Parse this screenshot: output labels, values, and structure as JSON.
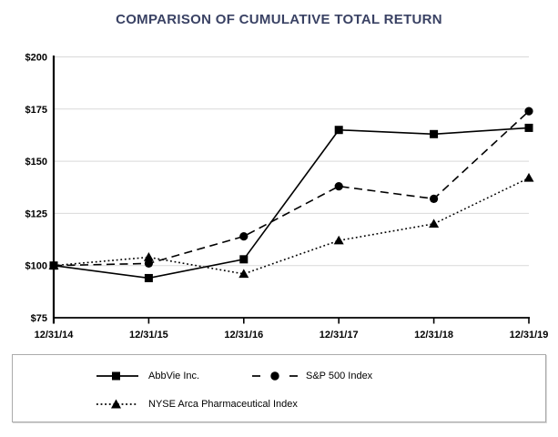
{
  "title": {
    "text": "COMPARISON OF CUMULATIVE TOTAL RETURN",
    "color": "#3a4264"
  },
  "chart_data": {
    "type": "line",
    "title": "COMPARISON OF CUMULATIVE TOTAL RETURN",
    "x_labels": [
      "12/31/14",
      "12/31/15",
      "12/31/16",
      "12/31/17",
      "12/31/18",
      "12/31/19"
    ],
    "y_tick_labels": [
      "$200",
      "$175",
      "$150",
      "$125",
      "$100",
      "$75"
    ],
    "y_ticks": [
      200,
      175,
      150,
      125,
      100,
      75
    ],
    "ylim": [
      75,
      200
    ],
    "grid": "horizontal",
    "grid_color": "#d9d9d9",
    "axis_color": "#000000",
    "legend_position": "bottom-boxed",
    "series": [
      {
        "name": "AbbVie Inc.",
        "line_style": "solid",
        "marker": "square",
        "color": "#000000",
        "values": [
          100,
          94,
          103,
          165,
          163,
          166
        ]
      },
      {
        "name": "S&P 500 Index",
        "line_style": "dashed",
        "marker": "circle",
        "color": "#000000",
        "values": [
          100,
          101,
          114,
          138,
          132,
          174
        ]
      },
      {
        "name": "NYSE Arca Pharmaceutical Index",
        "line_style": "dotted",
        "marker": "triangle",
        "color": "#000000",
        "values": [
          100,
          104,
          96,
          112,
          120,
          142
        ]
      }
    ]
  },
  "legend": {
    "border_color": "#ababab"
  }
}
